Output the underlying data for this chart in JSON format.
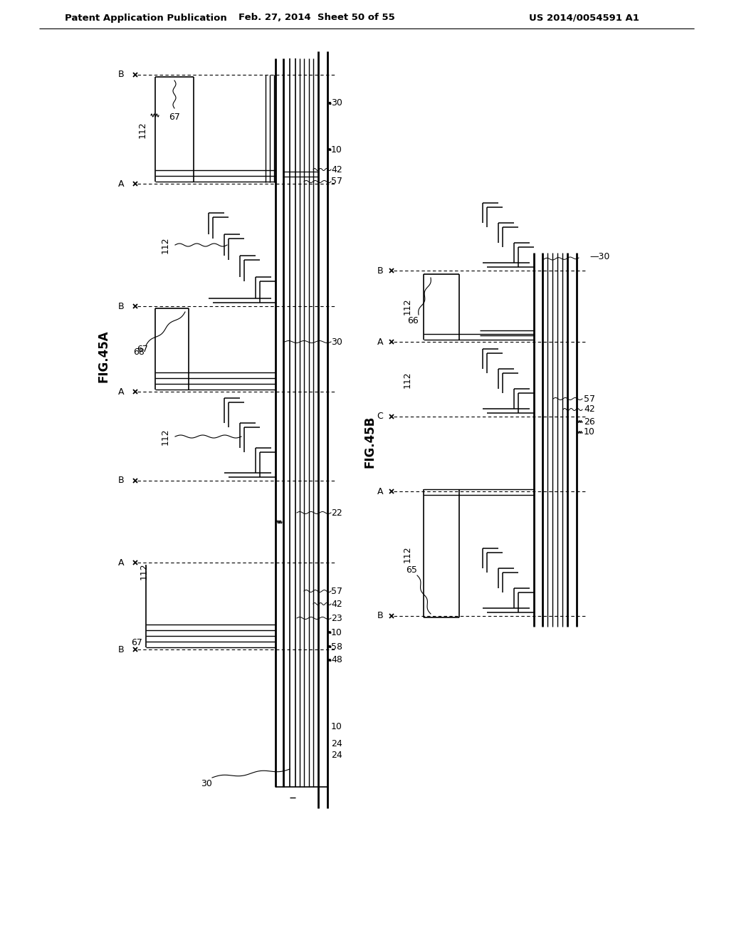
{
  "header_left": "Patent Application Publication",
  "header_mid": "Feb. 27, 2014  Sheet 50 of 55",
  "header_right": "US 2014/0054591 A1",
  "fig45a": "FIG.45A",
  "fig45b": "FIG.45B",
  "bg": "#ffffff"
}
